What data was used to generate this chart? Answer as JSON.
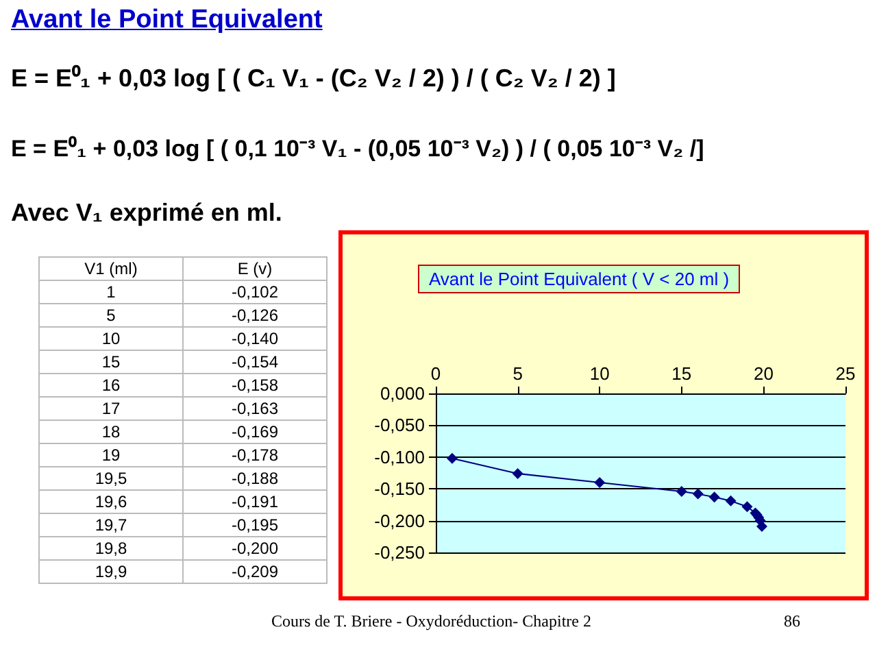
{
  "chart_data": {
    "type": "line",
    "title": "Avant le Point Equivalent ( V < 20 ml )",
    "annotations": [
      "Avant le Point Equivalent",
      "E = E⁰₁ + 0,03 log [ ( C₁ V₁ - (C₂ V₂ / 2) ) / ( C₂ V₂ / 2) ]",
      "E = E⁰₁ + 0,03 log [ ( 0,1 10⁻³ V₁ - (0,05 10⁻³ V₂) ) / ( 0,05 10⁻³ V₂ /]",
      "Avec V₁ exprimé en ml.",
      "Cours de T. Briere - Oxydoréduction- Chapitre 2",
      "86",
      "V1 (ml)",
      "E (v)",
      "1",
      "-0,102",
      "5",
      "-0,126",
      "10",
      "-0,140",
      "15",
      "-0,154",
      "16",
      "-0,158",
      "17",
      "-0,163",
      "18",
      "-0,169",
      "19",
      "-0,178",
      "19,5",
      "-0,188",
      "19,6",
      "-0,191",
      "19,7",
      "-0,195",
      "19,8",
      "-0,200",
      "19,9",
      "-0,209"
    ],
    "x": [
      1,
      5,
      10,
      15,
      16,
      17,
      18,
      19,
      19.5,
      19.6,
      19.7,
      19.8,
      19.9
    ],
    "series": [
      {
        "color": "#000080",
        "values": [
          -0.102,
          -0.126,
          -0.14,
          -0.154,
          -0.158,
          -0.163,
          -0.169,
          -0.178,
          -0.188,
          -0.191,
          -0.195,
          -0.2,
          -0.209
        ]
      }
    ],
    "xlim": [
      0,
      25
    ],
    "xticks": [
      0,
      5,
      10,
      15,
      20,
      25
    ],
    "ylim": [
      -0.25,
      0
    ],
    "yticks": [
      {
        "value": 0,
        "label": "0,000"
      },
      {
        "value": -0.05,
        "label": "-0,050"
      },
      {
        "value": -0.1,
        "label": "-0,100"
      },
      {
        "value": -0.15,
        "label": "-0,150"
      },
      {
        "value": -0.2,
        "label": "-0,200"
      },
      {
        "value": -0.25,
        "label": "-0,250"
      }
    ],
    "grid": "y",
    "marker": "diamond",
    "line_style": "solid"
  }
}
